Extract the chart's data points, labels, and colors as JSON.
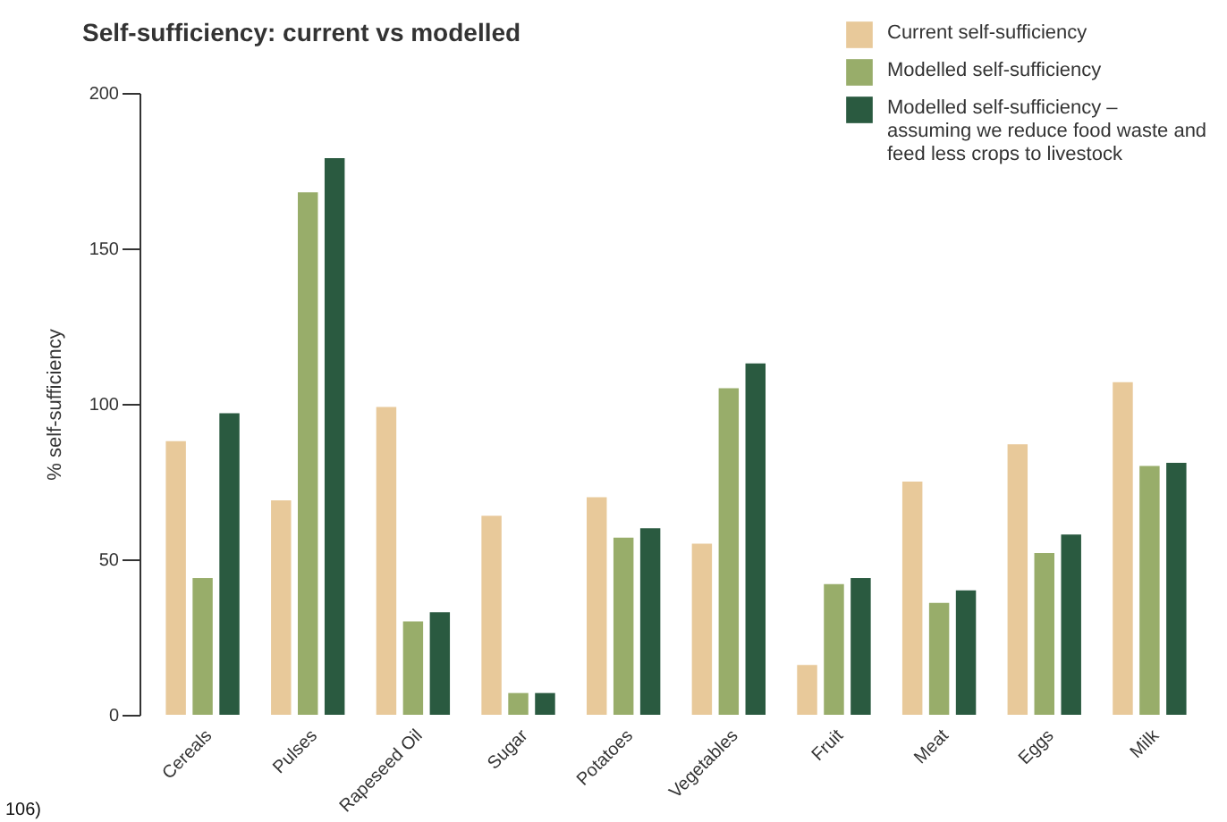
{
  "chart_data": {
    "type": "bar",
    "title": "Self-sufficiency: current vs modelled",
    "ylabel": "% self-sufficiency",
    "categories": [
      "Cereals",
      "Pulses",
      "Rapeseed Oil",
      "Sugar",
      "Potatoes",
      "Vegetables",
      "Fruit",
      "Meat",
      "Eggs",
      "Milk"
    ],
    "series": [
      {
        "name": "Current self-sufficiency",
        "color": "#e8c99a",
        "values": [
          88,
          69,
          99,
          64,
          70,
          55,
          16,
          75,
          87,
          107
        ]
      },
      {
        "name": "Modelled self-sufficiency",
        "color": "#98ad6a",
        "values": [
          44,
          168,
          30,
          7,
          57,
          105,
          42,
          36,
          52,
          80
        ]
      },
      {
        "name": "Modelled self-sufficiency – assuming we reduce food waste and feed less crops to livestock",
        "color": "#2a5a40",
        "values": [
          97,
          179,
          33,
          7,
          60,
          113,
          44,
          40,
          58,
          81
        ]
      }
    ],
    "ylim": [
      0,
      200
    ],
    "yticks": [
      0,
      50,
      100,
      150,
      200
    ],
    "grid": false,
    "legend": "top right",
    "annotations": [
      "106)"
    ]
  }
}
